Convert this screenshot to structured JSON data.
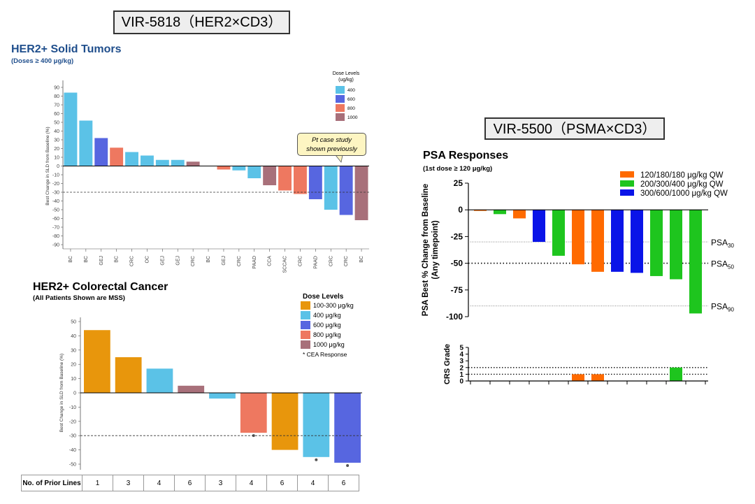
{
  "titles": {
    "vir5818": "VIR-5818（HER2×CD3）",
    "vir5500": "VIR-5500（PSMA×CD3）"
  },
  "panelA": {
    "heading": "HER2+ Solid Tumors",
    "subheading": "(Doses ≥ 400 μg/kg)",
    "callout": [
      "Pt case study",
      "shown previously"
    ]
  },
  "panelB": {
    "heading": "HER2+ Colorectal Cancer",
    "subheading": "(All Patients Shown are MSS)",
    "prior_lines_label": "No. of Prior Lines",
    "prior_lines": [
      "1",
      "3",
      "4",
      "6",
      "3",
      "4",
      "6",
      "4",
      "6"
    ]
  },
  "panelC": {
    "heading": "PSA Responses",
    "subheading": "(1st dose ≥ 120 μg/kg)"
  },
  "colors": {
    "d100": "#e8960c",
    "d400": "#5bc2e7",
    "d600": "#5766e0",
    "d800": "#ee7860",
    "d1000": "#a8707a",
    "psa_orange": "#ff6a00",
    "psa_green": "#1ec51e",
    "psa_blue": "#0a14e8"
  },
  "chart_data": [
    {
      "id": "her2-solid",
      "type": "bar",
      "title": "HER2+ Solid Tumors",
      "ylabel": "Best Change in SLD from Baseline (%)",
      "xlabel": "",
      "ylim": [
        -90,
        90
      ],
      "yticks": [
        90,
        80,
        70,
        60,
        50,
        40,
        30,
        20,
        10,
        0,
        -10,
        -20,
        -30,
        -40,
        -50,
        -60,
        -70,
        -80,
        -90
      ],
      "reference_line": -30,
      "legend_title": [
        "Dose Levels",
        "(ug/kg)"
      ],
      "legend": [
        {
          "label": "400",
          "dose": "d400"
        },
        {
          "label": "600",
          "dose": "d600"
        },
        {
          "label": "800",
          "dose": "d800"
        },
        {
          "label": "1000",
          "dose": "d1000"
        }
      ],
      "categories": [
        "BC",
        "BC",
        "GEJ",
        "BC",
        "CRC",
        "OC",
        "GEJ",
        "GEJ",
        "CRC",
        "BC",
        "GEJ",
        "CRC",
        "PAAD",
        "CCA",
        "SCCAC",
        "CRC",
        "PAAD",
        "CRC",
        "CRC",
        "BC"
      ],
      "values": [
        84,
        52,
        32,
        21,
        16,
        12,
        7,
        7,
        5,
        0,
        -4,
        -5,
        -14,
        -22,
        -28,
        -32,
        -38,
        -50,
        -56,
        -62
      ],
      "doses": [
        "d400",
        "d400",
        "d600",
        "d800",
        "d400",
        "d400",
        "d400",
        "d400",
        "d1000",
        "d400",
        "d800",
        "d400",
        "d400",
        "d1000",
        "d800",
        "d800",
        "d600",
        "d400",
        "d600",
        "d1000"
      ]
    },
    {
      "id": "her2-crc",
      "type": "bar",
      "title": "HER2+ Colorectal Cancer",
      "ylabel": "Best Change in SLD from Baseline (%)",
      "xlabel": "",
      "ylim": [
        -50,
        50
      ],
      "yticks": [
        50,
        40,
        30,
        20,
        10,
        0,
        -10,
        -20,
        -30,
        -40,
        -50
      ],
      "reference_line": -30,
      "legend_title": [
        "Dose Levels"
      ],
      "legend": [
        {
          "label": "100-300 μg/kg",
          "dose": "d100"
        },
        {
          "label": "400 μg/kg",
          "dose": "d400"
        },
        {
          "label": "600 μg/kg",
          "dose": "d600"
        },
        {
          "label": "800 μg/kg",
          "dose": "d800"
        },
        {
          "label": "1000 μg/kg",
          "dose": "d1000"
        }
      ],
      "legend_note": "* CEA Response",
      "values": [
        44,
        25,
        17,
        5,
        -4,
        -28,
        -40,
        -45,
        -49
      ],
      "doses": [
        "d100",
        "d100",
        "d400",
        "d1000",
        "d400",
        "d800",
        "d100",
        "d400",
        "d600"
      ],
      "cea_response": [
        false,
        false,
        false,
        false,
        false,
        true,
        false,
        true,
        true
      ]
    },
    {
      "id": "psa",
      "type": "bar",
      "title": "PSA Responses",
      "ylabel": [
        "PSA Best % Change from Baseline",
        "(Any timepoint)"
      ],
      "ylim": [
        -100,
        25
      ],
      "yticks": [
        25,
        0,
        -25,
        -50,
        -75,
        -100
      ],
      "reference_lines": [
        {
          "value": -30,
          "label": "PSA",
          "sub": "30",
          "style": "dotted"
        },
        {
          "value": -50,
          "label": "PSA",
          "sub": "50",
          "style": "heavy-dotted"
        },
        {
          "value": -90,
          "label": "PSA",
          "sub": "90",
          "style": "dotted"
        }
      ],
      "legend": [
        {
          "label": "120/180/180 μg/kg QW",
          "dose": "psa_orange"
        },
        {
          "label": "200/300/400 μg/kg QW",
          "dose": "psa_green"
        },
        {
          "label": "300/600/1000 μg/kg QW",
          "dose": "psa_blue"
        }
      ],
      "values": [
        -1,
        -4,
        -8,
        -30,
        -43,
        -51,
        -58,
        -58,
        -59,
        -62,
        -65,
        -97
      ],
      "doses": [
        "psa_orange",
        "psa_green",
        "psa_orange",
        "psa_blue",
        "psa_green",
        "psa_orange",
        "psa_orange",
        "psa_blue",
        "psa_blue",
        "psa_green",
        "psa_green",
        "psa_green"
      ]
    },
    {
      "id": "crs",
      "type": "bar",
      "ylabel": "CRS Grade",
      "ylim": [
        0,
        5
      ],
      "yticks": [
        5,
        4,
        3,
        2,
        1,
        0
      ],
      "reference_lines": [
        1,
        2
      ],
      "values": [
        0,
        0,
        0,
        0,
        0,
        1,
        1,
        0,
        0,
        0,
        2,
        0
      ],
      "doses": [
        "psa_orange",
        "psa_green",
        "psa_orange",
        "psa_blue",
        "psa_green",
        "psa_orange",
        "psa_orange",
        "psa_blue",
        "psa_blue",
        "psa_green",
        "psa_green",
        "psa_green"
      ]
    }
  ]
}
